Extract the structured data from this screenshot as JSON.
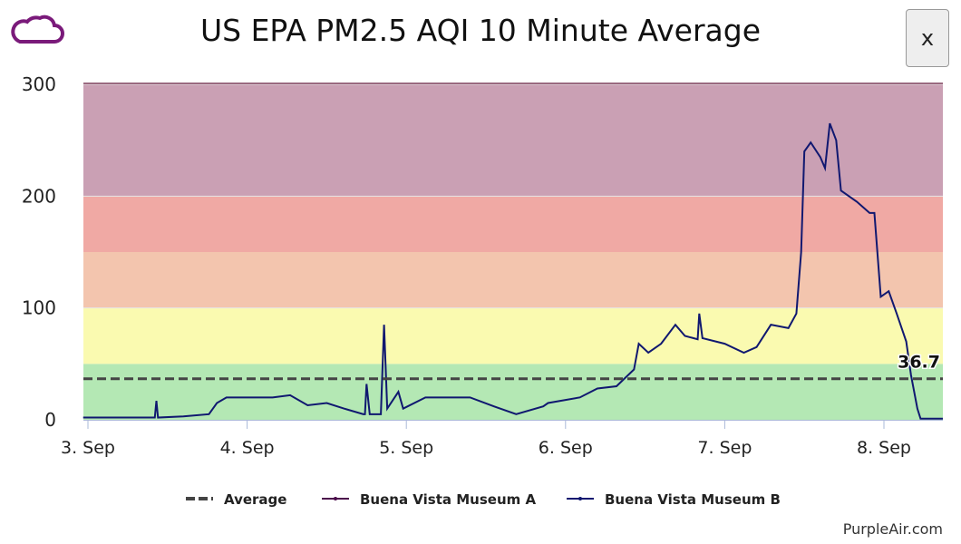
{
  "header": {
    "title": "US EPA PM2.5 AQI 10 Minute Average",
    "close_label": "x",
    "logo_icon": "cloud-icon"
  },
  "credit": "PurpleAir.com",
  "colors": {
    "good": "#b4e8b4",
    "moderate": "#fafab0",
    "usg": "#f3c5ae",
    "unhealthy": "#f0a9a4",
    "very_unhealthy": "#caa0b4",
    "series_a": "#4b0a4b",
    "series_b": "#101870",
    "average": "#444444"
  },
  "chart_data": {
    "type": "line",
    "title": "US EPA PM2.5 AQI 10 Minute Average",
    "ylim": [
      0,
      300
    ],
    "yticks": [
      "0",
      "100",
      "200",
      "300"
    ],
    "xticks": [
      "3. Sep",
      "4. Sep",
      "5. Sep",
      "6. Sep",
      "7. Sep",
      "8. Sep"
    ],
    "x_unit": "days since 3 Sep",
    "bands": [
      [
        0,
        50
      ],
      [
        50,
        100
      ],
      [
        100,
        150
      ],
      [
        150,
        200
      ],
      [
        200,
        300
      ]
    ],
    "average": 36.7,
    "average_label": "36.7",
    "legend": [
      "Average",
      "Buena Vista Museum A",
      "Buena Vista Museum B"
    ],
    "series": [
      {
        "name": "Buena Vista Museum B",
        "points": [
          [
            -0.03,
            2
          ],
          [
            0.42,
            2
          ],
          [
            0.43,
            17
          ],
          [
            0.44,
            2
          ],
          [
            0.6,
            3
          ],
          [
            0.76,
            5
          ],
          [
            0.81,
            15
          ],
          [
            0.87,
            20
          ],
          [
            1.16,
            20
          ],
          [
            1.27,
            22
          ],
          [
            1.38,
            13
          ],
          [
            1.5,
            15
          ],
          [
            1.61,
            10
          ],
          [
            1.73,
            5
          ],
          [
            1.74,
            5
          ],
          [
            1.75,
            32
          ],
          [
            1.77,
            5
          ],
          [
            1.84,
            5
          ],
          [
            1.86,
            85
          ],
          [
            1.88,
            10
          ],
          [
            1.95,
            25
          ],
          [
            1.98,
            10
          ],
          [
            2.12,
            20
          ],
          [
            2.4,
            20
          ],
          [
            2.55,
            12
          ],
          [
            2.69,
            5
          ],
          [
            2.86,
            12
          ],
          [
            2.89,
            15
          ],
          [
            3.09,
            20
          ],
          [
            3.2,
            28
          ],
          [
            3.32,
            30
          ],
          [
            3.43,
            45
          ],
          [
            3.46,
            68
          ],
          [
            3.52,
            60
          ],
          [
            3.6,
            68
          ],
          [
            3.69,
            85
          ],
          [
            3.75,
            75
          ],
          [
            3.83,
            72
          ],
          [
            3.84,
            95
          ],
          [
            3.86,
            73
          ],
          [
            4.0,
            68
          ],
          [
            4.12,
            60
          ],
          [
            4.2,
            65
          ],
          [
            4.29,
            85
          ],
          [
            4.4,
            82
          ],
          [
            4.45,
            95
          ],
          [
            4.48,
            150
          ],
          [
            4.5,
            240
          ],
          [
            4.54,
            248
          ],
          [
            4.6,
            235
          ],
          [
            4.63,
            225
          ],
          [
            4.66,
            265
          ],
          [
            4.7,
            250
          ],
          [
            4.73,
            205
          ],
          [
            4.83,
            195
          ],
          [
            4.91,
            185
          ],
          [
            4.94,
            185
          ],
          [
            4.98,
            110
          ],
          [
            5.03,
            115
          ],
          [
            5.08,
            95
          ],
          [
            5.14,
            70
          ],
          [
            5.17,
            40
          ],
          [
            5.21,
            10
          ],
          [
            5.23,
            1
          ],
          [
            5.37,
            1
          ]
        ]
      }
    ]
  }
}
